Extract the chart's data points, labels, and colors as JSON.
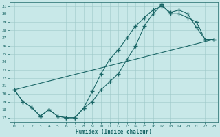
{
  "xlabel": "Humidex (Indice chaleur)",
  "bg_color": "#c8e8e8",
  "grid_color": "#9dc8c8",
  "line_color": "#1a6666",
  "xlim": [
    -0.5,
    23.5
  ],
  "ylim": [
    16.5,
    31.5
  ],
  "yticks": [
    17,
    18,
    19,
    20,
    21,
    22,
    23,
    24,
    25,
    26,
    27,
    28,
    29,
    30,
    31
  ],
  "xticks": [
    0,
    1,
    2,
    3,
    4,
    5,
    6,
    7,
    8,
    9,
    10,
    11,
    12,
    13,
    14,
    15,
    16,
    17,
    18,
    19,
    20,
    21,
    22,
    23
  ],
  "curve1_x": [
    0,
    1,
    2,
    3,
    4,
    5,
    6,
    7,
    8,
    9,
    10,
    11,
    12,
    13,
    14,
    15,
    16,
    17,
    18,
    19,
    20,
    21,
    22,
    23
  ],
  "curve1_y": [
    20.5,
    19.0,
    18.3,
    17.2,
    18.0,
    17.2,
    17.0,
    17.0,
    18.2,
    19.0,
    20.5,
    21.5,
    22.5,
    24.3,
    26.0,
    28.5,
    30.0,
    31.2,
    30.0,
    30.0,
    29.5,
    29.0,
    26.8,
    26.8
  ],
  "curve2_x": [
    0,
    1,
    2,
    3,
    4,
    5,
    6,
    7,
    8,
    9,
    10,
    11,
    12,
    13,
    14,
    15,
    16,
    17,
    18,
    19,
    20,
    21,
    22,
    23
  ],
  "curve2_y": [
    20.5,
    19.0,
    18.3,
    17.2,
    18.0,
    17.2,
    17.0,
    17.0,
    18.2,
    20.3,
    22.5,
    24.3,
    25.5,
    27.0,
    28.5,
    29.5,
    30.5,
    31.0,
    30.2,
    30.5,
    30.0,
    28.3,
    26.8,
    26.8
  ],
  "line3_x": [
    0,
    23
  ],
  "line3_y": [
    20.5,
    26.8
  ],
  "marker": "+",
  "marker_size": 4,
  "line_width": 0.8
}
